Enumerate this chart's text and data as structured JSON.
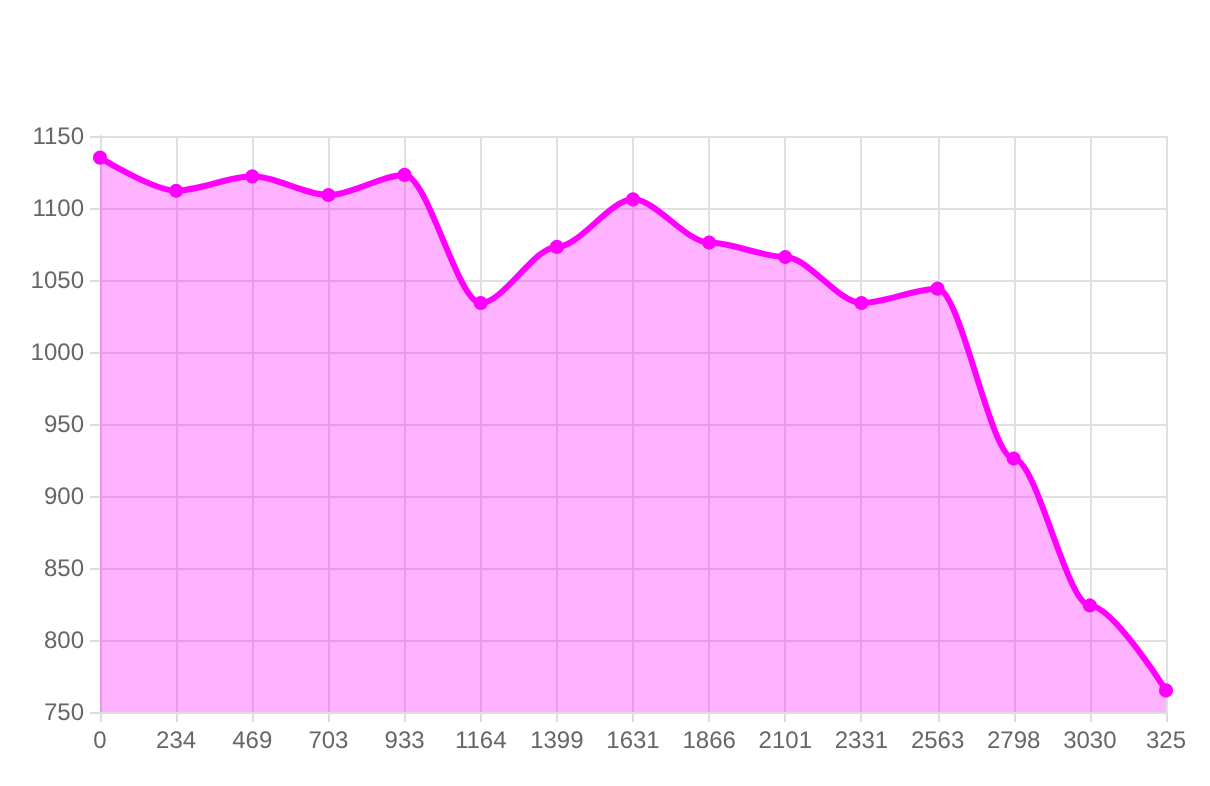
{
  "chart_data": {
    "type": "area",
    "categories": [
      "0",
      "234",
      "469",
      "703",
      "933",
      "1164",
      "1399",
      "1631",
      "1866",
      "2101",
      "2331",
      "2563",
      "2798",
      "3030",
      "325"
    ],
    "series": [
      {
        "color": "#ff00ff",
        "values": [
          1135,
          1112,
          1122,
          1109,
          1123,
          1034,
          1073,
          1106,
          1076,
          1066,
          1034,
          1044,
          926,
          824,
          765
        ]
      }
    ],
    "ylim": [
      750,
      1150
    ],
    "yticks": [
      750,
      800,
      850,
      900,
      950,
      1000,
      1050,
      1100,
      1150
    ],
    "grid": true,
    "marker": "circle",
    "line_style": "solid"
  }
}
